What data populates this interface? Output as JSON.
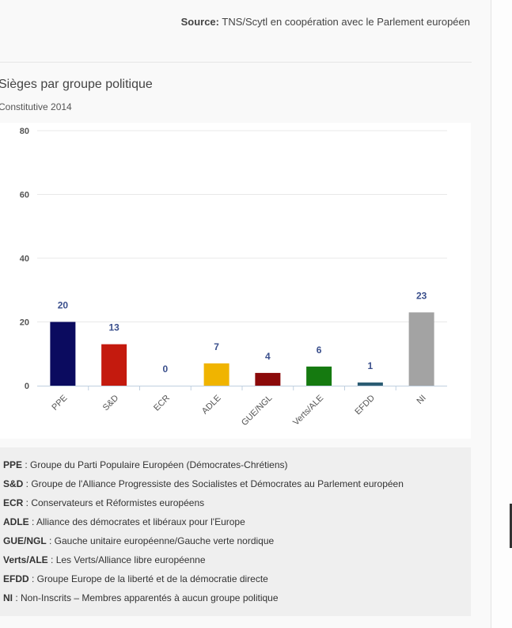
{
  "source": {
    "label": "Source:",
    "text": "TNS/Scytl en coopération avec le Parlement européen"
  },
  "title": "Sièges par groupe politique",
  "subtitle": "Constitutive 2014",
  "colors": {
    "PPE": "#0b0b5f",
    "S&D": "#c41a0e",
    "ECR": "#1f3f8f",
    "ADLE": "#f0b400",
    "GUE/NGL": "#8b0a0a",
    "Verts/ALE": "#157a10",
    "EFDD": "#2b5c73",
    "NI": "#a3a3a3",
    "value_label": "#3a4f8c"
  },
  "chart_data": {
    "type": "bar",
    "title": "Sièges par groupe politique",
    "subtitle": "Constitutive 2014",
    "categories": [
      "PPE",
      "S&D",
      "ECR",
      "ADLE",
      "GUE/NGL",
      "Verts/ALE",
      "EFDD",
      "NI"
    ],
    "values": [
      20,
      13,
      0,
      7,
      4,
      6,
      1,
      23
    ],
    "ylim": [
      0,
      80
    ],
    "yticks": [
      0,
      20,
      40,
      60,
      80
    ],
    "grid": true,
    "data_labels": true
  },
  "legend": [
    {
      "abbr": "PPE",
      "desc": " : Groupe du Parti Populaire Européen (Démocrates-Chrétiens)"
    },
    {
      "abbr": "S&D",
      "desc": " : Groupe de l'Alliance Progressiste des Socialistes et Démocrates au Parlement européen"
    },
    {
      "abbr": "ECR",
      "desc": " : Conservateurs et Réformistes européens"
    },
    {
      "abbr": "ADLE",
      "desc": " : Alliance des démocrates et libéraux pour l'Europe"
    },
    {
      "abbr": "GUE/NGL",
      "desc": " : Gauche unitaire européenne/Gauche verte nordique"
    },
    {
      "abbr": "Verts/ALE",
      "desc": " : Les Verts/Alliance libre européenne"
    },
    {
      "abbr": "EFDD",
      "desc": " : Groupe Europe de la liberté et de la démocratie directe"
    },
    {
      "abbr": "NI",
      "desc": " : Non-Inscrits – Membres apparentés à aucun groupe politique"
    }
  ]
}
